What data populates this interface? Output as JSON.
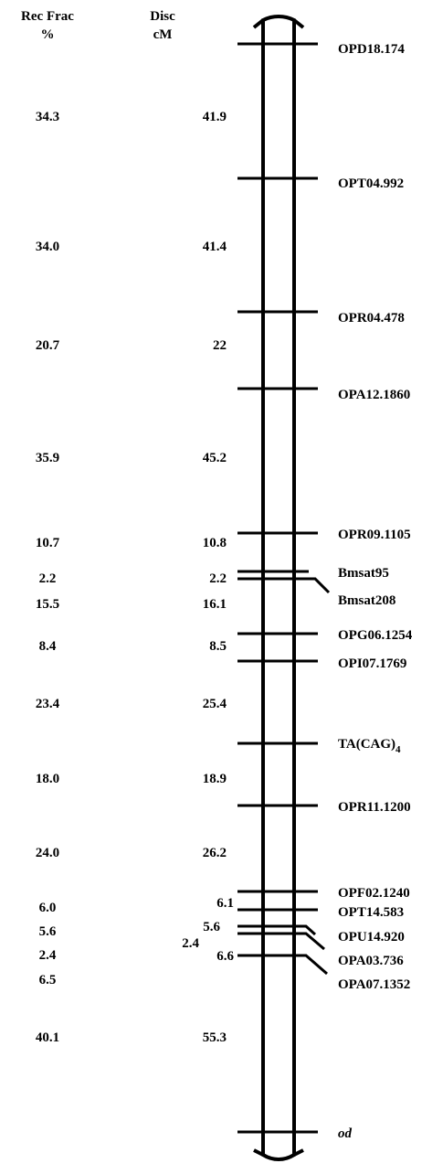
{
  "headers": {
    "rec_frac_line1": "Rec Frac",
    "rec_frac_line2": "%",
    "disc_line1": "Disc",
    "disc_line2": "cM"
  },
  "markers": [
    {
      "id": "m1",
      "label": "OPD18.174"
    },
    {
      "id": "m2",
      "label": "OPT04.992"
    },
    {
      "id": "m3",
      "label": "OPR04.478"
    },
    {
      "id": "m4",
      "label": "OPA12.1860"
    },
    {
      "id": "m5",
      "label": "OPR09.1105"
    },
    {
      "id": "m6",
      "label": "Bmsat95"
    },
    {
      "id": "m7",
      "label": "Bmsat208"
    },
    {
      "id": "m8",
      "label": "OPG06.1254"
    },
    {
      "id": "m9",
      "label": "OPI07.1769"
    },
    {
      "id": "m10",
      "label": "TA(CAG)",
      "subscript": "4"
    },
    {
      "id": "m11",
      "label": "OPR11.1200"
    },
    {
      "id": "m12",
      "label": "OPF02.1240"
    },
    {
      "id": "m13",
      "label": "OPT14.583"
    },
    {
      "id": "m14",
      "label": "OPU14.920"
    },
    {
      "id": "m15",
      "label": "OPA03.736"
    },
    {
      "id": "m16",
      "label": "OPA07.1352"
    },
    {
      "id": "m17",
      "label": "od"
    }
  ],
  "intervals": [
    {
      "rec_frac": "34.3",
      "disc_cm": "41.9"
    },
    {
      "rec_frac": "34.0",
      "disc_cm": "41.4"
    },
    {
      "rec_frac": "20.7",
      "disc_cm": "22"
    },
    {
      "rec_frac": "35.9",
      "disc_cm": "45.2"
    },
    {
      "rec_frac": "10.7",
      "disc_cm": "10.8"
    },
    {
      "rec_frac": "2.2",
      "disc_cm": "2.2"
    },
    {
      "rec_frac": "15.5",
      "disc_cm": "16.1"
    },
    {
      "rec_frac": "8.4",
      "disc_cm": "8.5"
    },
    {
      "rec_frac": "23.4",
      "disc_cm": "25.4"
    },
    {
      "rec_frac": "18.0",
      "disc_cm": "18.9"
    },
    {
      "rec_frac": "24.0",
      "disc_cm": "26.2"
    },
    {
      "rec_frac": "6.0",
      "disc_cm": "6.1"
    },
    {
      "rec_frac": "5.6",
      "disc_cm": "5.6"
    },
    {
      "rec_frac": "2.4",
      "disc_cm": "2.4"
    },
    {
      "rec_frac": "6.5",
      "disc_cm": "6.6"
    },
    {
      "rec_frac": "40.1",
      "disc_cm": "55.3"
    }
  ]
}
